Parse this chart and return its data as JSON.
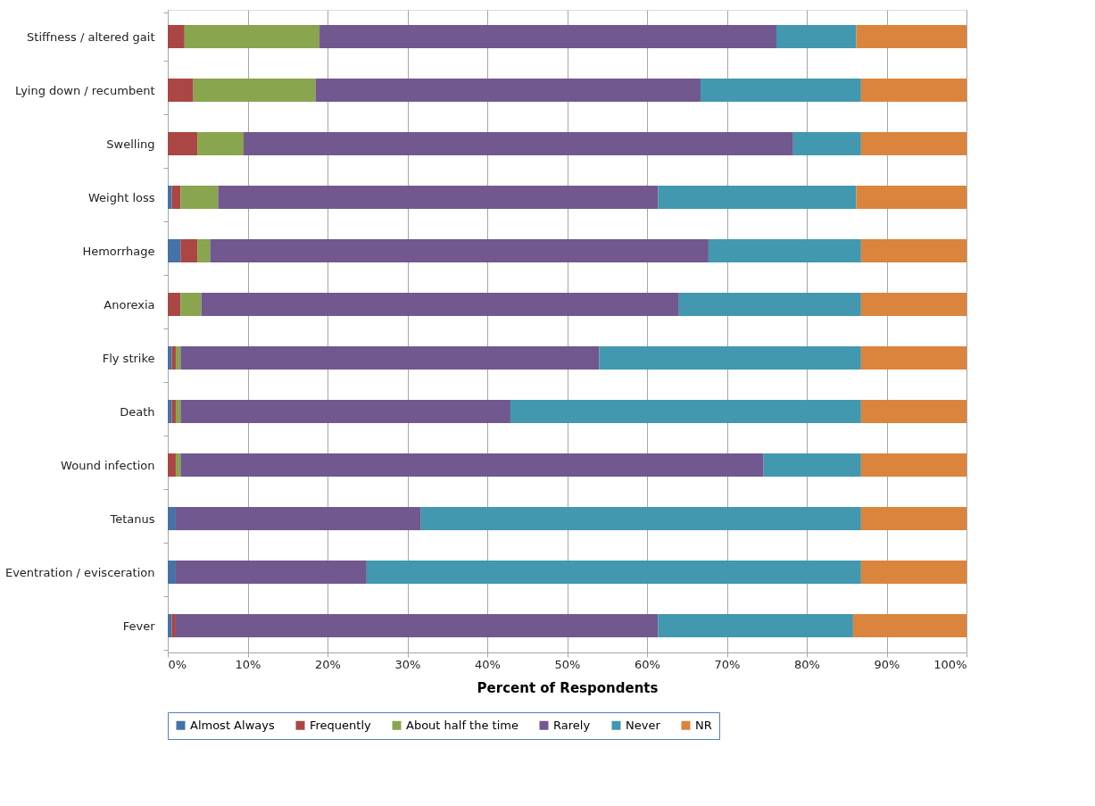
{
  "chart_data": {
    "type": "bar",
    "orientation": "horizontal",
    "stacked": true,
    "xlabel": "Percent of Respondents",
    "categories": [
      "Stiffness / altered gait",
      "Lying down / recumbent",
      "Swelling",
      "Weight loss",
      "Hemorrhage",
      "Anorexia",
      "Fly strike",
      "Death",
      "Wound infection",
      "Tetanus",
      "Eventration / evisceration",
      "Fever"
    ],
    "series": [
      {
        "name": "Almost Always",
        "color": "#4572a7",
        "values": [
          0,
          0,
          0,
          0.5,
          1.6,
          0,
          0.5,
          0.5,
          0,
          1.0,
          1.0,
          0.5
        ]
      },
      {
        "name": "Frequently",
        "color": "#aa4643",
        "values": [
          2.1,
          3.2,
          3.7,
          1.1,
          2.1,
          1.6,
          0.5,
          0.5,
          1.0,
          0,
          0,
          0.5
        ]
      },
      {
        "name": "About half the time",
        "color": "#89a54e",
        "values": [
          16.9,
          15.3,
          5.8,
          4.7,
          1.6,
          2.6,
          0.6,
          0.6,
          0.6,
          0,
          0,
          0
        ]
      },
      {
        "name": "Rarely",
        "color": "#71588f",
        "values": [
          57.2,
          48.2,
          68.8,
          55.1,
          62.4,
          59.8,
          52.4,
          41.3,
          73.0,
          30.7,
          23.9,
          60.4
        ]
      },
      {
        "name": "Never",
        "color": "#4198af",
        "values": [
          10.0,
          20.1,
          8.5,
          24.8,
          19.1,
          22.8,
          32.8,
          43.9,
          12.2,
          55.1,
          61.9,
          24.4
        ]
      },
      {
        "name": "NR",
        "color": "#db843d",
        "values": [
          13.8,
          13.2,
          13.2,
          13.8,
          13.2,
          13.2,
          13.2,
          13.2,
          13.2,
          13.2,
          13.2,
          14.2
        ]
      }
    ],
    "xlim": [
      0,
      100
    ],
    "xticks": [
      {
        "value": 0,
        "label": "0%"
      },
      {
        "value": 10,
        "label": "10%"
      },
      {
        "value": 20,
        "label": "20%"
      },
      {
        "value": 30,
        "label": "30%"
      },
      {
        "value": 40,
        "label": "40%"
      },
      {
        "value": 50,
        "label": "50%"
      },
      {
        "value": 60,
        "label": "60%"
      },
      {
        "value": 70,
        "label": "70%"
      },
      {
        "value": 80,
        "label": "80%"
      },
      {
        "value": 90,
        "label": "90%"
      },
      {
        "value": 100,
        "label": "100%"
      }
    ],
    "grid": "x",
    "legend": "bottom"
  }
}
